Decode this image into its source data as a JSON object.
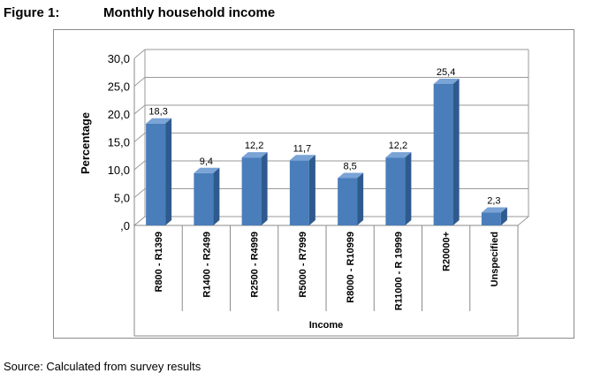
{
  "figure": {
    "label": "Figure 1:",
    "title": "Monthly household income",
    "source": "Source:  Calculated  from  survey  results"
  },
  "chart_data": {
    "type": "bar",
    "title": "",
    "xlabel": "Income",
    "ylabel": "Percentage",
    "categories": [
      "R800 - R1399",
      "R1400 - R2499",
      "R2500 - R4999",
      "R5000 - R7999",
      "R8000 - R10999",
      "R11000 - R 19999",
      "R20000+",
      "Unspecified"
    ],
    "values": [
      18.3,
      9.4,
      12.2,
      11.7,
      8.5,
      12.2,
      25.4,
      2.3
    ],
    "value_labels": [
      "18,3",
      "9,4",
      "12,2",
      "11,7",
      "8,5",
      "12,2",
      "25,4",
      "2,3"
    ],
    "yticks": [
      ",0",
      "5,0",
      "10,0",
      "15,0",
      "20,0",
      "25,0",
      "30,0"
    ],
    "ylim": [
      0,
      30
    ],
    "grid": true,
    "legend": "none",
    "bar_color": "#4a7ebb"
  }
}
